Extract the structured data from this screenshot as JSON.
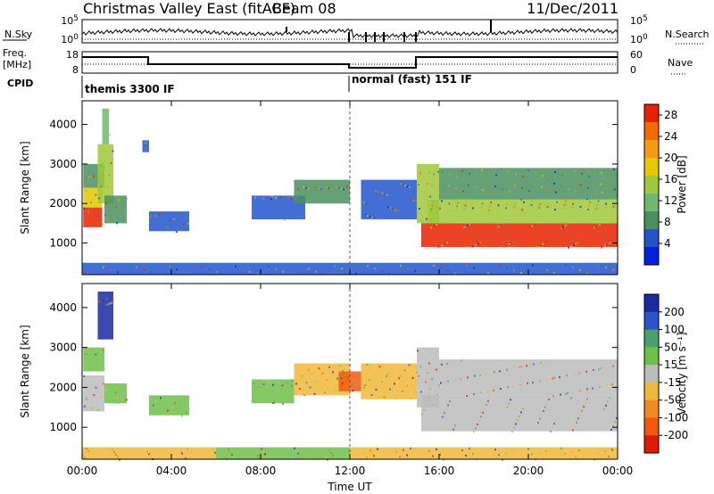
{
  "header": {
    "title": "Christmas Valley East (fitACF)",
    "beam": "Beam 08",
    "date": "11/Dec/2011"
  },
  "strips": {
    "nsky_label": "N.Sky",
    "nsky_ticks": [
      "10^5",
      "10^0"
    ],
    "nsearch_label": "N.Search",
    "nsearch_ticks": [
      "10^5",
      "10^0"
    ],
    "freq_label": "Freq.",
    "freq_unit": "[MHz]",
    "freq_ticks": [
      "18",
      "8"
    ],
    "nave_label": "Nave",
    "nave_ticks": [
      "60",
      "0"
    ],
    "cpid_label": "CPID",
    "cpid_modes": [
      {
        "name": "themis 3300 IF",
        "start_hour": 0
      },
      {
        "name": "normal (fast) 151 IF",
        "start_hour": 12
      }
    ]
  },
  "colors": {
    "power_scale": [
      "#0022dd",
      "#2255cc",
      "#4a8f5e",
      "#6fb86f",
      "#a0c83a",
      "#e6c800",
      "#f39c12",
      "#f26a00",
      "#e62200"
    ],
    "velocity_scale": [
      "#1a2aa0",
      "#2a55c8",
      "#4a9f6a",
      "#6ec04a",
      "#bcbcbc",
      "#f0b83a",
      "#f08a20",
      "#f05a10",
      "#e01a00"
    ],
    "gray": "#bcbcbc"
  },
  "chart_data": [
    {
      "type": "heatmap",
      "panel": "power",
      "ylabel": "Slant Range [km]",
      "xlabel": "Time UT",
      "x_ticks": [
        "00:00",
        "04:00",
        "08:00",
        "12:00",
        "16:00",
        "20:00",
        "00:00"
      ],
      "y_ticks": [
        1000,
        2000,
        3000,
        4000
      ],
      "xlim_hours": [
        0,
        24
      ],
      "ylim_km": [
        200,
        4600
      ],
      "colorbar": {
        "label": "Power [dB]",
        "ticks": [
          "4",
          "8",
          "12",
          "16",
          "20",
          "24",
          "28"
        ],
        "range": [
          0,
          30
        ]
      },
      "regions": [
        {
          "t": [
            0.05,
            0.9
          ],
          "r": [
            1400,
            1900
          ],
          "value": 27
        },
        {
          "t": [
            0.05,
            0.9
          ],
          "r": [
            1900,
            2400
          ],
          "value": 18
        },
        {
          "t": [
            0.05,
            1.0
          ],
          "r": [
            2400,
            3000
          ],
          "value": 8
        },
        {
          "t": [
            0.7,
            1.4
          ],
          "r": [
            2000,
            3500
          ],
          "value": 14
        },
        {
          "t": [
            0.9,
            1.2
          ],
          "r": [
            3500,
            4400
          ],
          "value": 10
        },
        {
          "t": [
            1.0,
            2.0
          ],
          "r": [
            1500,
            2200
          ],
          "value": 9
        },
        {
          "t": [
            2.7,
            3.0
          ],
          "r": [
            3300,
            3600
          ],
          "value": 6
        },
        {
          "t": [
            3.0,
            4.8
          ],
          "r": [
            1300,
            1800
          ],
          "value": 5
        },
        {
          "t": [
            7.6,
            10.0
          ],
          "r": [
            1600,
            2200
          ],
          "value": 6
        },
        {
          "t": [
            9.5,
            12.0
          ],
          "r": [
            2000,
            2600
          ],
          "value": 7
        },
        {
          "t": [
            12.5,
            15.0
          ],
          "r": [
            1600,
            2600
          ],
          "value": 5
        },
        {
          "t": [
            15.0,
            16.0
          ],
          "r": [
            1500,
            3000
          ],
          "value": 14
        },
        {
          "t": [
            15.2,
            24.0
          ],
          "r": [
            900,
            1500
          ],
          "value": 29
        },
        {
          "t": [
            15.5,
            24.0
          ],
          "r": [
            1500,
            2100
          ],
          "value": 14
        },
        {
          "t": [
            16.0,
            24.0
          ],
          "r": [
            2100,
            2900
          ],
          "value": 8
        },
        {
          "t": [
            0.0,
            24.0
          ],
          "r": [
            200,
            500
          ],
          "value": 5
        }
      ]
    },
    {
      "type": "heatmap",
      "panel": "velocity",
      "ylabel": "Slant Range [km]",
      "xlabel": "Time UT",
      "x_ticks": [
        "00:00",
        "04:00",
        "08:00",
        "12:00",
        "16:00",
        "20:00",
        "00:00"
      ],
      "y_ticks": [
        1000,
        2000,
        3000,
        4000
      ],
      "xlim_hours": [
        0,
        24
      ],
      "ylim_km": [
        200,
        4600
      ],
      "colorbar": {
        "label": "Velocity [m s⁻¹]",
        "ticks": [
          "200",
          "100",
          "50",
          "15",
          "-15",
          "-50",
          "-100",
          "-200"
        ],
        "range": [
          -250,
          250
        ]
      },
      "regions": [
        {
          "t": [
            0.05,
            1.0
          ],
          "r": [
            1400,
            2300
          ],
          "value": 0
        },
        {
          "t": [
            0.05,
            1.0
          ],
          "r": [
            2400,
            3000
          ],
          "value": 60
        },
        {
          "t": [
            0.7,
            1.4
          ],
          "r": [
            3200,
            4400
          ],
          "value": 220
        },
        {
          "t": [
            1.0,
            2.0
          ],
          "r": [
            1600,
            2100
          ],
          "value": 60
        },
        {
          "t": [
            3.0,
            4.8
          ],
          "r": [
            1300,
            1800
          ],
          "value": 60
        },
        {
          "t": [
            7.6,
            9.5
          ],
          "r": [
            1600,
            2200
          ],
          "value": 60
        },
        {
          "t": [
            9.5,
            12.0
          ],
          "r": [
            1800,
            2600
          ],
          "value": -70
        },
        {
          "t": [
            11.5,
            12.5
          ],
          "r": [
            1900,
            2400
          ],
          "value": -160
        },
        {
          "t": [
            12.5,
            15.0
          ],
          "r": [
            1700,
            2600
          ],
          "value": -40
        },
        {
          "t": [
            15.0,
            16.0
          ],
          "r": [
            1500,
            3000
          ],
          "value": 0
        },
        {
          "t": [
            15.2,
            24.0
          ],
          "r": [
            900,
            1800
          ],
          "value": 0
        },
        {
          "t": [
            16.0,
            24.0
          ],
          "r": [
            1800,
            2700
          ],
          "value": 0
        },
        {
          "t": [
            0.0,
            6.0
          ],
          "r": [
            200,
            500
          ],
          "value": -70
        },
        {
          "t": [
            6.0,
            12.0
          ],
          "r": [
            200,
            500
          ],
          "value": 40
        },
        {
          "t": [
            12.0,
            24.0
          ],
          "r": [
            200,
            500
          ],
          "value": -60
        }
      ]
    }
  ]
}
